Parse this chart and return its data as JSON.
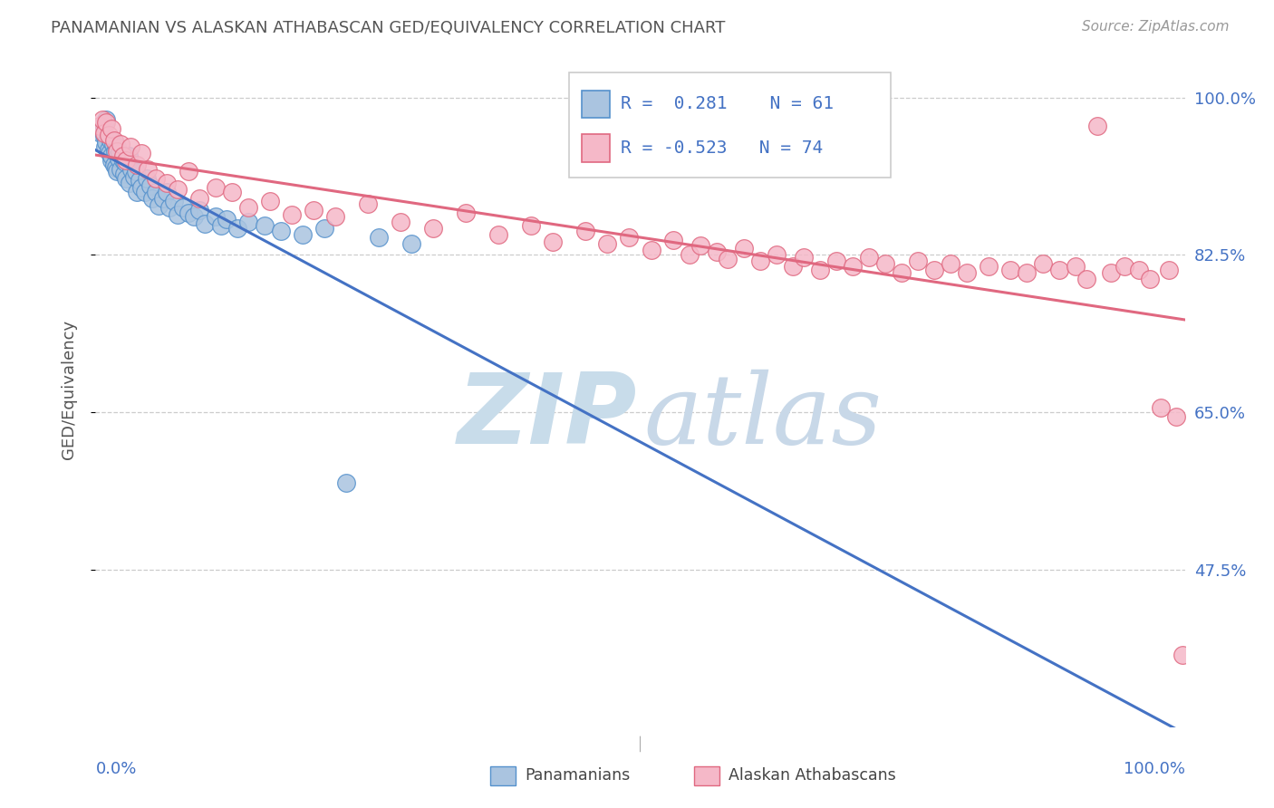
{
  "title": "PANAMANIAN VS ALASKAN ATHABASCAN GED/EQUIVALENCY CORRELATION CHART",
  "source": "Source: ZipAtlas.com",
  "ylabel": "GED/Equivalency",
  "ytick_labels": [
    "100.0%",
    "82.5%",
    "65.0%",
    "47.5%"
  ],
  "ytick_values": [
    1.0,
    0.825,
    0.65,
    0.475
  ],
  "xlim": [
    0.0,
    1.0
  ],
  "ylim": [
    0.3,
    1.05
  ],
  "legend_r_blue": "R =  0.281",
  "legend_n_blue": "N = 61",
  "legend_r_pink": "R = -0.523",
  "legend_n_pink": "N = 74",
  "legend_label_blue": "Panamanians",
  "legend_label_pink": "Alaskan Athabascans",
  "blue_scatter_color": "#aac4e0",
  "blue_edge_color": "#5591cc",
  "pink_scatter_color": "#f5b8c8",
  "pink_edge_color": "#e06880",
  "blue_line_color": "#4472c4",
  "pink_line_color": "#e06880",
  "legend_text_color": "#4472c4",
  "axis_tick_color": "#4472c4",
  "title_color": "#555555",
  "source_color": "#999999",
  "grid_color": "#cccccc",
  "watermark_zip_color": "#c8dcea",
  "watermark_atlas_color": "#c8d8e8",
  "bg_color": "#ffffff",
  "blue_x": [
    0.005,
    0.005,
    0.007,
    0.008,
    0.009,
    0.01,
    0.01,
    0.012,
    0.013,
    0.014,
    0.015,
    0.015,
    0.016,
    0.017,
    0.018,
    0.019,
    0.02,
    0.02,
    0.021,
    0.022,
    0.023,
    0.025,
    0.026,
    0.027,
    0.028,
    0.03,
    0.031,
    0.033,
    0.035,
    0.037,
    0.038,
    0.04,
    0.042,
    0.045,
    0.047,
    0.05,
    0.052,
    0.055,
    0.058,
    0.062,
    0.065,
    0.068,
    0.072,
    0.075,
    0.08,
    0.085,
    0.09,
    0.095,
    0.1,
    0.11,
    0.115,
    0.12,
    0.13,
    0.14,
    0.155,
    0.17,
    0.19,
    0.21,
    0.23,
    0.26,
    0.29
  ],
  "blue_y": [
    0.965,
    0.96,
    0.97,
    0.958,
    0.945,
    0.975,
    0.95,
    0.942,
    0.938,
    0.952,
    0.93,
    0.935,
    0.948,
    0.925,
    0.94,
    0.922,
    0.945,
    0.918,
    0.932,
    0.938,
    0.92,
    0.93,
    0.915,
    0.928,
    0.91,
    0.935,
    0.905,
    0.92,
    0.912,
    0.918,
    0.895,
    0.908,
    0.9,
    0.895,
    0.91,
    0.902,
    0.888,
    0.895,
    0.88,
    0.888,
    0.895,
    0.878,
    0.885,
    0.87,
    0.878,
    0.872,
    0.868,
    0.875,
    0.86,
    0.868,
    0.858,
    0.865,
    0.855,
    0.862,
    0.858,
    0.852,
    0.848,
    0.855,
    0.572,
    0.845,
    0.838
  ],
  "pink_x": [
    0.004,
    0.006,
    0.008,
    0.01,
    0.012,
    0.015,
    0.017,
    0.02,
    0.023,
    0.025,
    0.028,
    0.032,
    0.038,
    0.042,
    0.048,
    0.055,
    0.065,
    0.075,
    0.085,
    0.095,
    0.11,
    0.125,
    0.14,
    0.16,
    0.18,
    0.2,
    0.22,
    0.25,
    0.28,
    0.31,
    0.34,
    0.37,
    0.4,
    0.42,
    0.45,
    0.47,
    0.49,
    0.51,
    0.53,
    0.545,
    0.555,
    0.57,
    0.58,
    0.595,
    0.61,
    0.625,
    0.64,
    0.65,
    0.665,
    0.68,
    0.695,
    0.71,
    0.725,
    0.74,
    0.755,
    0.77,
    0.785,
    0.8,
    0.82,
    0.84,
    0.855,
    0.87,
    0.885,
    0.9,
    0.91,
    0.92,
    0.932,
    0.945,
    0.958,
    0.968,
    0.978,
    0.985,
    0.992,
    0.998
  ],
  "pink_y": [
    0.968,
    0.975,
    0.96,
    0.972,
    0.958,
    0.965,
    0.952,
    0.94,
    0.948,
    0.935,
    0.93,
    0.945,
    0.925,
    0.938,
    0.92,
    0.91,
    0.905,
    0.898,
    0.918,
    0.888,
    0.9,
    0.895,
    0.878,
    0.885,
    0.87,
    0.875,
    0.868,
    0.882,
    0.862,
    0.855,
    0.872,
    0.848,
    0.858,
    0.84,
    0.852,
    0.838,
    0.845,
    0.83,
    0.842,
    0.825,
    0.835,
    0.828,
    0.82,
    0.832,
    0.818,
    0.825,
    0.812,
    0.822,
    0.808,
    0.818,
    0.812,
    0.822,
    0.815,
    0.805,
    0.818,
    0.808,
    0.815,
    0.805,
    0.812,
    0.808,
    0.805,
    0.815,
    0.808,
    0.812,
    0.798,
    0.968,
    0.805,
    0.812,
    0.808,
    0.798,
    0.655,
    0.808,
    0.645,
    0.38
  ]
}
